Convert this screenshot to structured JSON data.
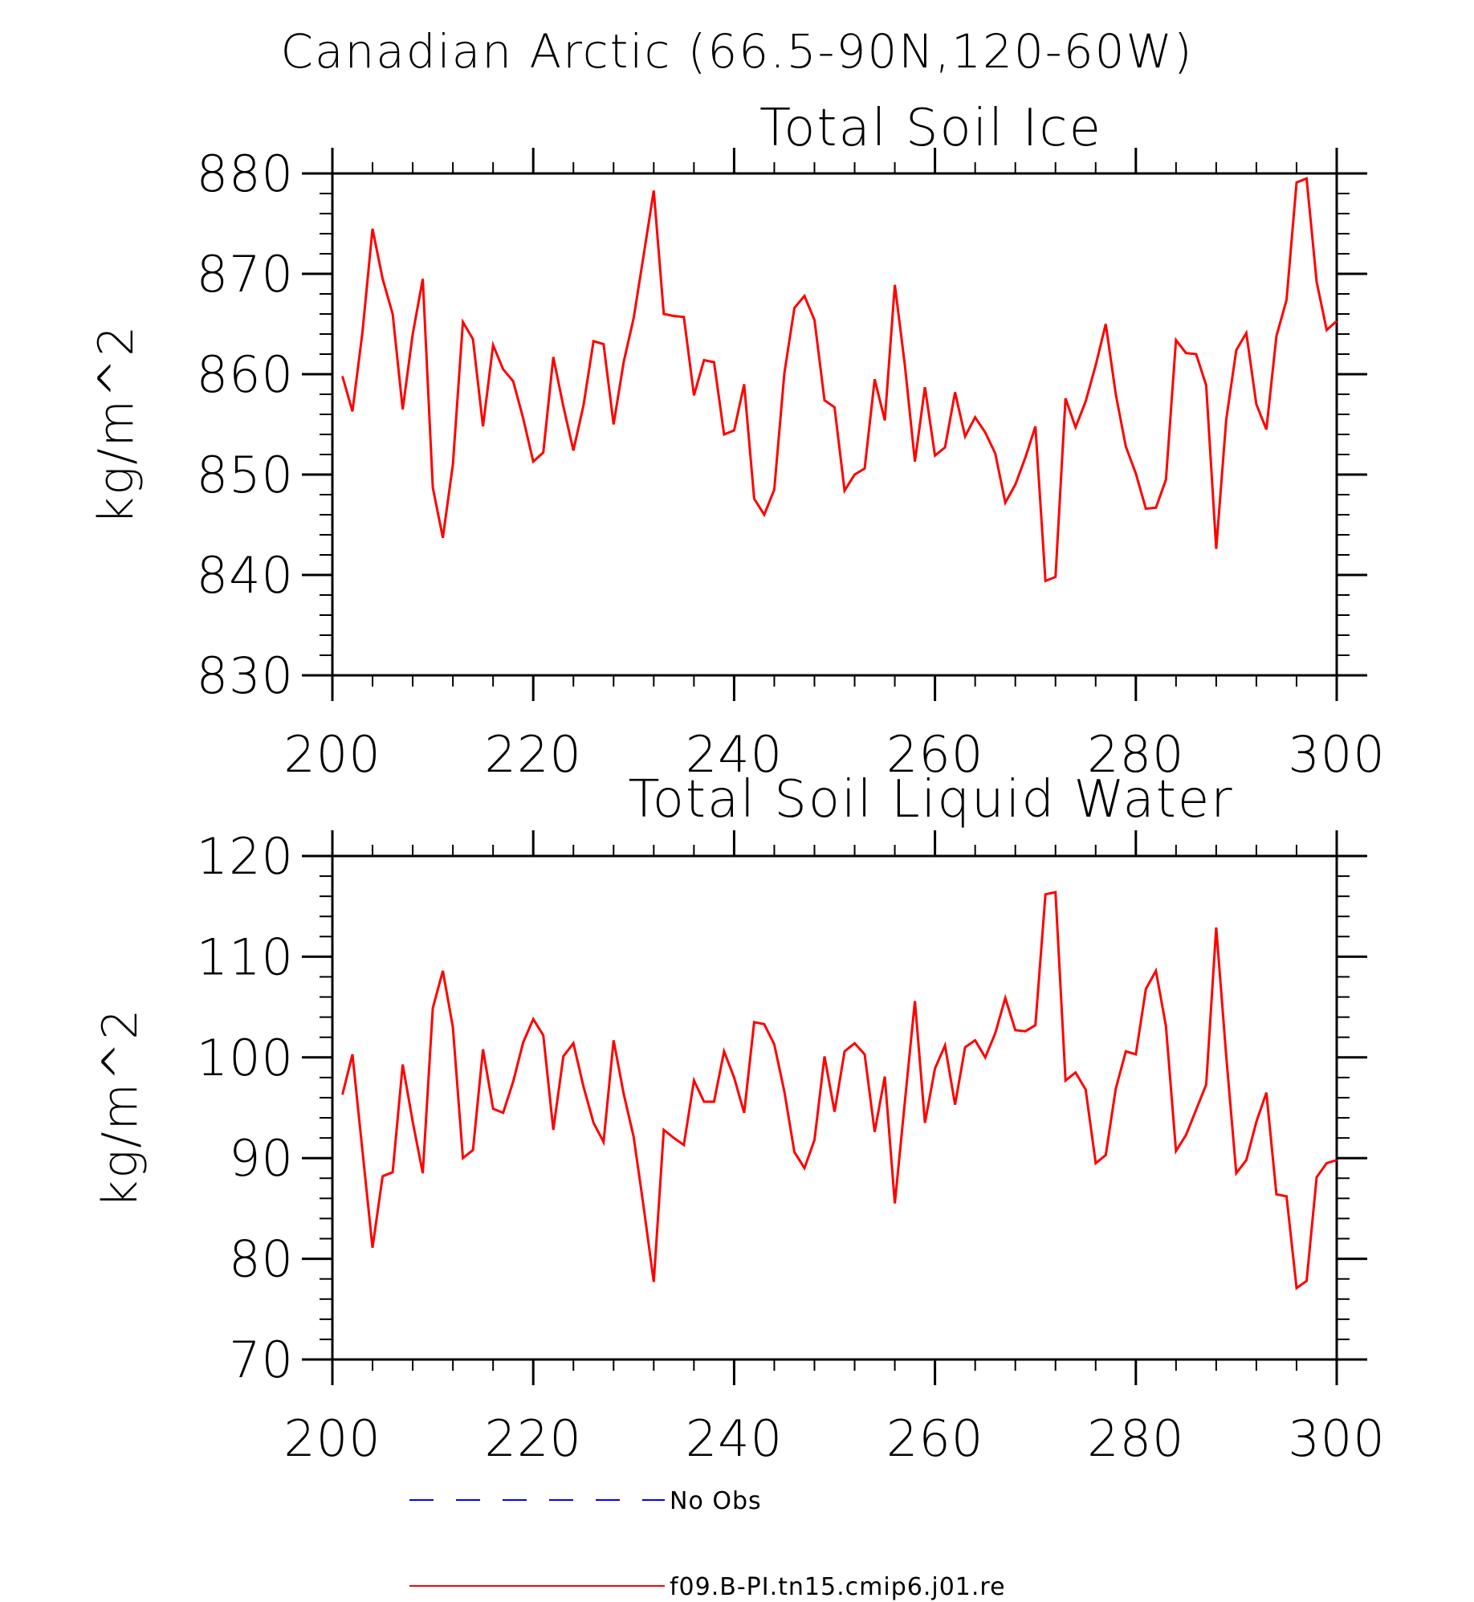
{
  "figure_title": "Canadian Arctic (66.5-90N,120-60W)",
  "colors": {
    "model": "#ff0000",
    "obs": "#0000ff",
    "axis": "#000000"
  },
  "legend": [
    {
      "label": "No Obs",
      "style": "dashed",
      "color": "#0000ff"
    },
    {
      "label": "f09.B-PI.tn15.cmip6.j01.re",
      "style": "solid",
      "color": "#ff0000"
    }
  ],
  "chart_data": [
    {
      "type": "line",
      "title": "Total Soil Ice",
      "xlabel": "",
      "ylabel": "kg/m^2",
      "xlim": [
        200,
        300
      ],
      "ylim": [
        830,
        880
      ],
      "xticks": [
        200,
        220,
        240,
        260,
        280,
        300
      ],
      "yticks": [
        830,
        840,
        850,
        860,
        870,
        880
      ],
      "grid": false,
      "x_start": 201,
      "series": [
        {
          "name": "f09.B-PI.tn15.cmip6.j01.re",
          "values": [
            859.8,
            856.3,
            864.2,
            874.5,
            869.5,
            866.0,
            856.5,
            864.0,
            869.5,
            848.7,
            843.7,
            851.0,
            865.2,
            863.5,
            854.8,
            862.9,
            860.5,
            859.3,
            855.6,
            851.3,
            852.2,
            861.7,
            856.8,
            852.4,
            856.9,
            863.3,
            863.0,
            855.0,
            861.2,
            865.6,
            871.9,
            878.3,
            866.0,
            865.8,
            865.7,
            857.9,
            861.4,
            861.2,
            854.0,
            854.4,
            859.0,
            847.6,
            846.0,
            848.5,
            860.1,
            866.6,
            867.8,
            865.4,
            857.4,
            856.7,
            848.4,
            850.0,
            850.6,
            859.5,
            855.4,
            868.9,
            860.9,
            851.3,
            858.7,
            851.9,
            852.7,
            858.2,
            853.8,
            855.7,
            854.2,
            852.1,
            847.2,
            849.0,
            851.7,
            854.8,
            839.4,
            839.8,
            857.6,
            854.7,
            857.3,
            860.9,
            865.0,
            858.0,
            852.8,
            850.1,
            846.6,
            846.7,
            849.5,
            863.4,
            862.1,
            862.0,
            858.9,
            842.6,
            855.5,
            862.4,
            864.1,
            857.0,
            854.5,
            863.8,
            867.4,
            879.1,
            879.5,
            869.2,
            864.4,
            865.3
          ]
        }
      ]
    },
    {
      "type": "line",
      "title": "Total Soil Liquid Water",
      "xlabel": "",
      "ylabel": "kg/m^2",
      "xlim": [
        200,
        300
      ],
      "ylim": [
        70,
        120
      ],
      "xticks": [
        200,
        220,
        240,
        260,
        280,
        300
      ],
      "yticks": [
        70,
        80,
        90,
        100,
        110,
        120
      ],
      "grid": false,
      "x_start": 201,
      "series": [
        {
          "name": "f09.B-PI.tn15.cmip6.j01.re",
          "values": [
            96.3,
            100.3,
            90.7,
            81.1,
            88.2,
            88.6,
            99.3,
            93.6,
            88.5,
            104.9,
            108.6,
            103.0,
            90.0,
            90.8,
            100.8,
            94.9,
            94.5,
            97.6,
            101.5,
            103.8,
            102.2,
            92.8,
            100.1,
            101.4,
            97.1,
            93.5,
            91.6,
            101.7,
            96.4,
            92.1,
            85.1,
            77.7,
            92.8,
            92.0,
            91.3,
            97.7,
            95.6,
            95.6,
            100.6,
            98.0,
            94.5,
            103.5,
            103.3,
            101.3,
            96.6,
            90.6,
            89.0,
            91.8,
            100.1,
            94.6,
            100.6,
            101.4,
            100.3,
            92.6,
            98.1,
            85.5,
            95.6,
            105.6,
            93.5,
            98.9,
            101.2,
            95.3,
            101.0,
            101.7,
            100.0,
            102.4,
            105.9,
            102.7,
            102.6,
            103.2,
            116.2,
            116.4,
            97.7,
            98.5,
            96.8,
            89.5,
            90.3,
            96.9,
            100.6,
            100.3,
            106.8,
            108.6,
            103.1,
            90.7,
            92.3,
            94.8,
            97.3,
            112.9,
            100.1,
            88.5,
            89.8,
            93.6,
            96.5,
            86.4,
            86.2,
            77.1,
            77.8,
            88.1,
            89.5,
            89.8
          ]
        }
      ]
    }
  ]
}
